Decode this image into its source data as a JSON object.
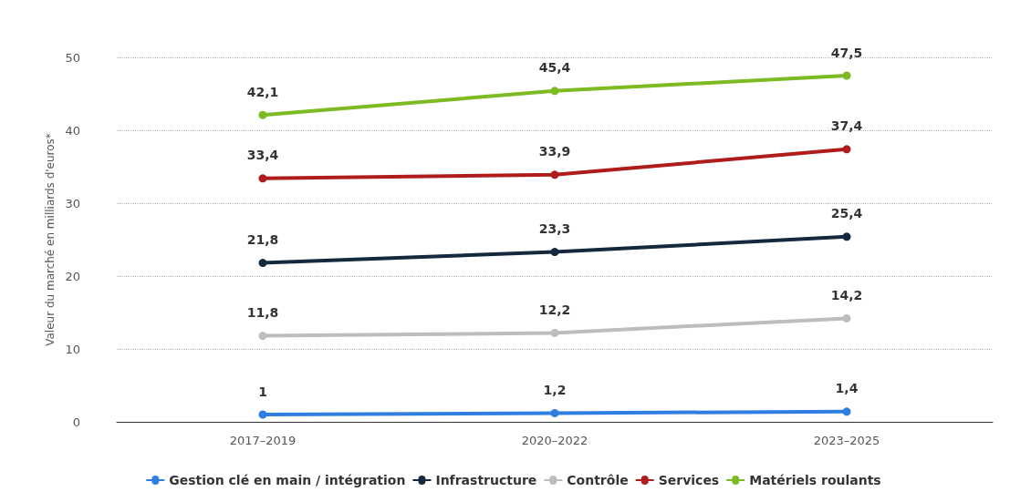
{
  "chart_data": {
    "type": "line",
    "ylabel": "Valeur du marché en milliards d'euros*",
    "categories": [
      "2017–2019",
      "2020–2022",
      "2023–2025"
    ],
    "series": [
      {
        "name": "Gestion clé en main / intégration",
        "color": "#2f7fe0",
        "values": [
          1,
          1.2,
          1.4
        ],
        "value_labels": [
          "1",
          "1,2",
          "1,4"
        ]
      },
      {
        "name": "Infrastructure",
        "color": "#14293d",
        "values": [
          21.8,
          23.3,
          25.4
        ],
        "value_labels": [
          "21,8",
          "23,3",
          "25,4"
        ]
      },
      {
        "name": "Contrôle",
        "color": "#bdbdbd",
        "values": [
          11.8,
          12.2,
          14.2
        ],
        "value_labels": [
          "11,8",
          "12,2",
          "14,2"
        ]
      },
      {
        "name": "Services",
        "color": "#b01c1c",
        "values": [
          33.4,
          33.9,
          37.4
        ],
        "value_labels": [
          "33,4",
          "33,9",
          "37,4"
        ]
      },
      {
        "name": "Matériels roulants",
        "color": "#7cbb22",
        "values": [
          42.1,
          45.4,
          47.5
        ],
        "value_labels": [
          "42,1",
          "45,4",
          "47,5"
        ]
      }
    ],
    "ylim": [
      0,
      50
    ],
    "yticks": [
      0,
      10,
      20,
      30,
      40,
      50
    ],
    "grid": "y",
    "legend": "bottom",
    "marker": "circle",
    "line_style": "solid"
  }
}
